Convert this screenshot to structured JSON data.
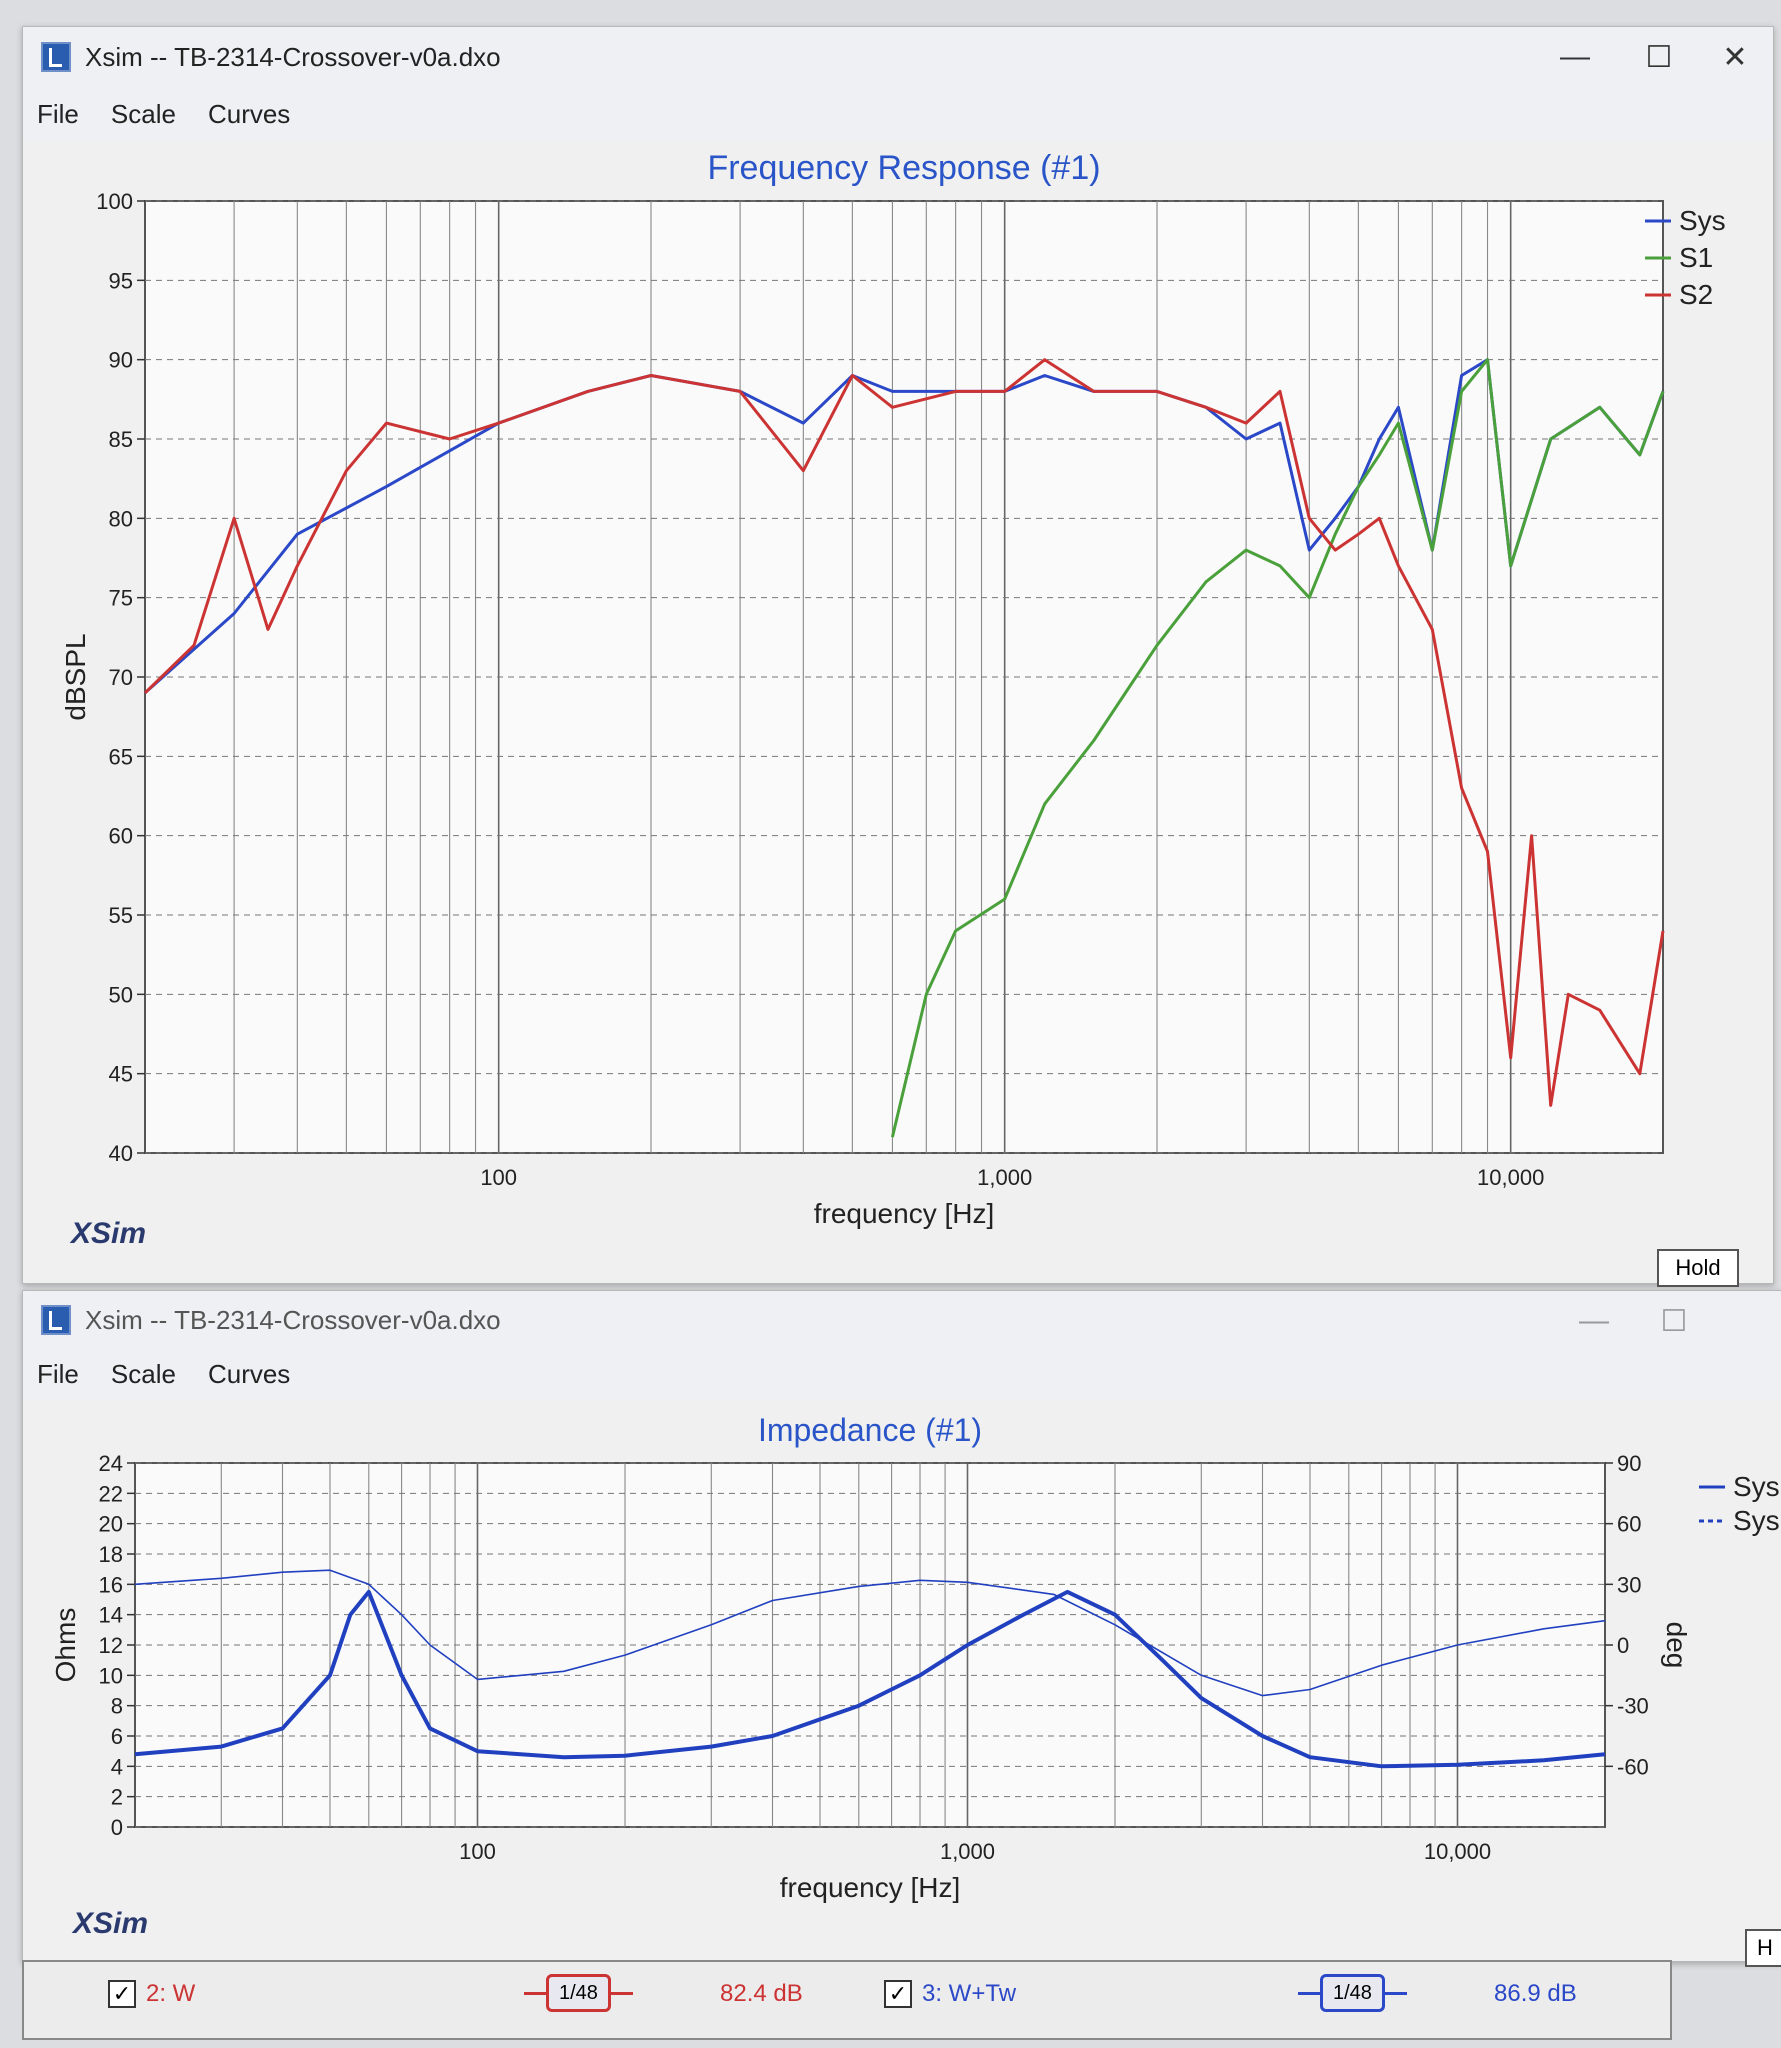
{
  "window1": {
    "title": "Xsim -- TB-2314-Crossover-v0a.dxo",
    "menu": [
      "File",
      "Scale",
      "Curves"
    ],
    "controls": {
      "minimize": "—",
      "maximize": "☐",
      "close": "✕"
    },
    "logo": "XSim",
    "hold_label": "Hold"
  },
  "window2": {
    "title": "Xsim -- TB-2314-Crossover-v0a.dxo",
    "menu": [
      "File",
      "Scale",
      "Curves"
    ],
    "controls": {
      "minimize": "—",
      "maximize": "☐"
    },
    "logo": "XSim",
    "hold_label": "H"
  },
  "status": {
    "item1_label": "2: W",
    "item1_order": "1/48",
    "item1_value": "82.4 dB",
    "item2_label": "3: W+Tw",
    "item2_order": "1/48",
    "item2_value": "86.9 dB"
  },
  "chart_data": [
    {
      "type": "line",
      "title": "Frequency Response (#1)",
      "xlabel": "frequency [Hz]",
      "ylabel": "dBSPL",
      "x_scale": "log",
      "xlim": [
        20,
        20000
      ],
      "ylim": [
        40,
        100
      ],
      "x_tick_labels": [
        "100",
        "1,000",
        "10,000"
      ],
      "y_tick_labels": [
        "40",
        "45",
        "50",
        "55",
        "60",
        "65",
        "70",
        "75",
        "80",
        "85",
        "90",
        "95",
        "100"
      ],
      "grid": true,
      "legend_position": "right",
      "series": [
        {
          "name": "Sys",
          "color": "#2a48c8",
          "x": [
            20,
            30,
            40,
            60,
            100,
            150,
            200,
            300,
            400,
            500,
            600,
            800,
            1000,
            1200,
            1500,
            2000,
            2500,
            3000,
            3500,
            4000,
            4500,
            5000,
            5500,
            6000,
            7000,
            8000,
            9000,
            10000,
            12000,
            15000,
            18000,
            20000
          ],
          "y": [
            69,
            74,
            79,
            82,
            86,
            88,
            89,
            88,
            86,
            89,
            88,
            88,
            88,
            89,
            88,
            88,
            87,
            85,
            86,
            78,
            80,
            82,
            85,
            87,
            78,
            89,
            90,
            77,
            85,
            87,
            84,
            88
          ]
        },
        {
          "name": "S1",
          "color": "#4aa03a",
          "x": [
            600,
            700,
            800,
            1000,
            1200,
            1500,
            2000,
            2500,
            3000,
            3500,
            4000,
            4500,
            5000,
            5500,
            6000,
            7000,
            8000,
            9000,
            10000,
            12000,
            15000,
            18000,
            20000
          ],
          "y": [
            41,
            50,
            54,
            56,
            62,
            66,
            72,
            76,
            78,
            77,
            75,
            79,
            82,
            84,
            86,
            78,
            88,
            90,
            77,
            85,
            87,
            84,
            88
          ]
        },
        {
          "name": "S2",
          "color": "#cc3333",
          "x": [
            20,
            25,
            30,
            35,
            40,
            50,
            60,
            80,
            100,
            150,
            200,
            300,
            400,
            500,
            600,
            800,
            1000,
            1200,
            1500,
            2000,
            2500,
            3000,
            3500,
            4000,
            4500,
            5000,
            5500,
            6000,
            7000,
            8000,
            9000,
            10000,
            11000,
            12000,
            13000,
            15000,
            18000,
            20000
          ],
          "y": [
            69,
            72,
            80,
            73,
            77,
            83,
            86,
            85,
            86,
            88,
            89,
            88,
            83,
            89,
            87,
            88,
            88,
            90,
            88,
            88,
            87,
            86,
            88,
            80,
            78,
            79,
            80,
            77,
            73,
            63,
            59,
            46,
            60,
            43,
            50,
            49,
            45,
            54
          ]
        }
      ]
    },
    {
      "type": "line",
      "title": "Impedance (#1)",
      "xlabel": "frequency [Hz]",
      "ylabel": "Ohms",
      "y2label": "deg",
      "x_scale": "log",
      "xlim": [
        20,
        20000
      ],
      "ylim": [
        0,
        24
      ],
      "y2lim": [
        -90,
        90
      ],
      "x_tick_labels": [
        "100",
        "1,000",
        "10,000"
      ],
      "y_tick_labels": [
        "0",
        "2",
        "4",
        "6",
        "8",
        "10",
        "12",
        "14",
        "16",
        "18",
        "20",
        "22",
        "24"
      ],
      "y2_tick_labels": [
        "-60",
        "-30",
        "0",
        "30",
        "60",
        "90"
      ],
      "grid": true,
      "legend_position": "right",
      "series": [
        {
          "name": "Sys",
          "style": "solid",
          "color": "#2040c0",
          "axis": "left",
          "x": [
            20,
            30,
            40,
            50,
            55,
            60,
            70,
            80,
            100,
            150,
            200,
            300,
            400,
            600,
            800,
            1000,
            1300,
            1600,
            2000,
            2500,
            3000,
            4000,
            5000,
            7000,
            10000,
            15000,
            20000
          ],
          "y": [
            4.8,
            5.3,
            6.5,
            10,
            14,
            15.5,
            10,
            6.5,
            5,
            4.6,
            4.7,
            5.3,
            6,
            8,
            10,
            12,
            14,
            15.5,
            14,
            11,
            8.5,
            6,
            4.6,
            4.0,
            4.1,
            4.4,
            4.8
          ]
        },
        {
          "name": "Sys",
          "style": "dashed",
          "color": "#2040c0",
          "axis": "right",
          "x": [
            20,
            30,
            40,
            50,
            60,
            70,
            80,
            100,
            150,
            200,
            300,
            400,
            600,
            800,
            1000,
            1500,
            2000,
            3000,
            4000,
            5000,
            7000,
            10000,
            15000,
            20000
          ],
          "y": [
            30,
            33,
            36,
            37,
            30,
            15,
            0,
            -17,
            -13,
            -5,
            10,
            22,
            29,
            32,
            31,
            25,
            10,
            -15,
            -25,
            -22,
            -10,
            0,
            8,
            12
          ]
        }
      ]
    }
  ]
}
